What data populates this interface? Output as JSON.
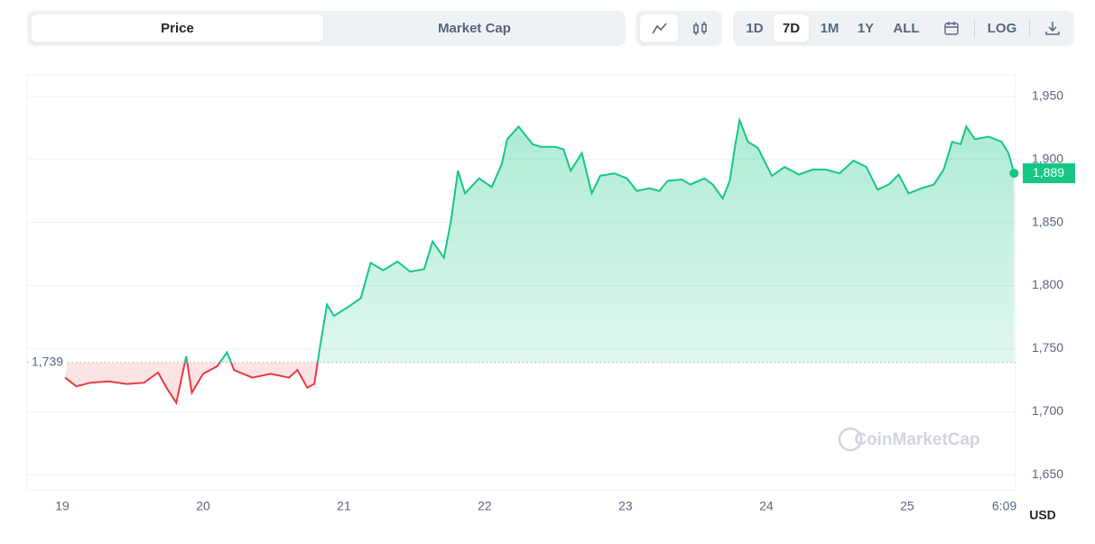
{
  "controls": {
    "tabs": [
      "Price",
      "Market Cap"
    ],
    "ranges": [
      "1D",
      "7D",
      "1M",
      "1Y",
      "ALL"
    ],
    "log": "LOG"
  },
  "chart_data": {
    "type": "line",
    "x": [
      19.02,
      19.1,
      19.2,
      19.33,
      19.46,
      19.58,
      19.68,
      19.74,
      19.81,
      19.88,
      19.92,
      20.0,
      20.1,
      20.17,
      20.22,
      20.35,
      20.48,
      20.61,
      20.67,
      20.74,
      20.79,
      20.83,
      20.88,
      20.93,
      21.03,
      21.12,
      21.19,
      21.28,
      21.38,
      21.47,
      21.57,
      21.63,
      21.71,
      21.76,
      21.81,
      21.86,
      21.96,
      22.05,
      22.12,
      22.16,
      22.24,
      22.34,
      22.4,
      22.5,
      22.56,
      22.61,
      22.69,
      22.76,
      22.82,
      22.92,
      23.01,
      23.08,
      23.17,
      23.24,
      23.3,
      23.4,
      23.46,
      23.56,
      23.62,
      23.69,
      23.74,
      23.78,
      23.81,
      23.87,
      23.94,
      24.04,
      24.13,
      24.23,
      24.33,
      24.42,
      24.52,
      24.62,
      24.71,
      24.79,
      24.87,
      24.94,
      25.01,
      25.1,
      25.19,
      25.26,
      25.32,
      25.38,
      25.42,
      25.48,
      25.58,
      25.67,
      25.72,
      25.76
    ],
    "values": [
      1727,
      1720,
      1723,
      1724,
      1722,
      1723,
      1731,
      1719,
      1707,
      1744,
      1715,
      1730,
      1736,
      1747,
      1733,
      1727,
      1730,
      1727,
      1733,
      1719,
      1722,
      1751,
      1785,
      1776,
      1783,
      1790,
      1818,
      1812,
      1819,
      1811,
      1813,
      1835,
      1822,
      1851,
      1891,
      1873,
      1885,
      1878,
      1896,
      1916,
      1926,
      1912,
      1910,
      1910,
      1908,
      1891,
      1905,
      1873,
      1887,
      1889,
      1885,
      1875,
      1877,
      1875,
      1883,
      1884,
      1880,
      1885,
      1880,
      1869,
      1883,
      1912,
      1931,
      1914,
      1909,
      1887,
      1894,
      1888,
      1892,
      1892,
      1889,
      1899,
      1894,
      1876,
      1880,
      1888,
      1873,
      1877,
      1880,
      1892,
      1914,
      1912,
      1926,
      1916,
      1918,
      1914,
      1905,
      1889
    ],
    "up_color": "#16c784",
    "down_color": "#ea3943",
    "baseline": {
      "value": 1739,
      "label": "1,739"
    },
    "last_price": {
      "value": 1889,
      "label": "1,889"
    },
    "xlim": [
      18.75,
      25.77
    ],
    "xticks": [
      19,
      20,
      21,
      22,
      23,
      24,
      25,
      {
        "value": 25.69,
        "label": "6:09"
      }
    ],
    "ylim": [
      1638,
      1967
    ],
    "yticks": [
      {
        "value": 1650,
        "label": "1,650"
      },
      {
        "value": 1700,
        "label": "1,700"
      },
      {
        "value": 1750,
        "label": "1,750"
      },
      {
        "value": 1800,
        "label": "1,800"
      },
      {
        "value": 1850,
        "label": "1,850"
      },
      {
        "value": 1900,
        "label": "1,900"
      },
      {
        "value": 1950,
        "label": "1,950"
      }
    ],
    "grid": true,
    "currency": "USD",
    "watermark": "CoinMarketCap"
  }
}
